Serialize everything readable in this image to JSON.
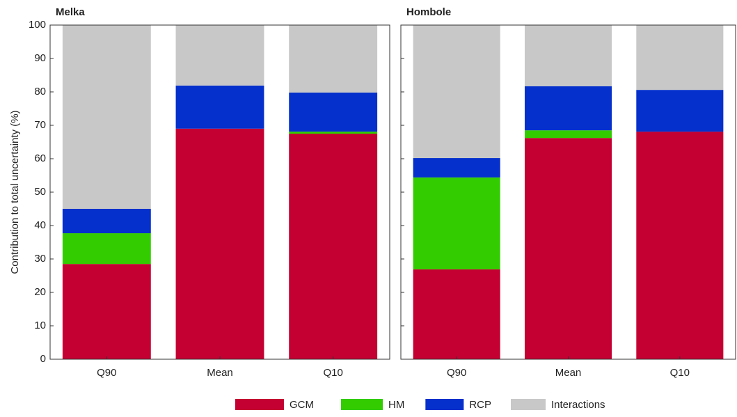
{
  "chart_data": [
    {
      "type": "stacked-bar",
      "title": "Melka",
      "y_label": "Contribution to total uncertainty (%)",
      "categories": [
        "Q90",
        "Mean",
        "Q10"
      ],
      "series": [
        {
          "name": "GCM",
          "color": "#c40032",
          "values": [
            28.5,
            69,
            67.5
          ]
        },
        {
          "name": "HM",
          "color": "#33cc00",
          "values": [
            9.2,
            0,
            0.6
          ]
        },
        {
          "name": "RCP",
          "color": "#0530cc",
          "values": [
            7.3,
            12.9,
            11.7
          ]
        },
        {
          "name": "Interactions",
          "color": "#c8c8c8",
          "values": [
            55,
            18.1,
            20.2
          ]
        }
      ],
      "ylim": [
        0,
        100
      ],
      "yticks": [
        0,
        10,
        20,
        30,
        40,
        50,
        60,
        70,
        80,
        90,
        100
      ]
    },
    {
      "type": "stacked-bar",
      "title": "Hombole",
      "categories": [
        "Q90",
        "Mean",
        "Q10"
      ],
      "series": [
        {
          "name": "GCM",
          "color": "#c40032",
          "values": [
            26.9,
            66.2,
            68.1
          ]
        },
        {
          "name": "HM",
          "color": "#33cc00",
          "values": [
            27.5,
            2.3,
            0
          ]
        },
        {
          "name": "RCP",
          "color": "#0530cc",
          "values": [
            5.8,
            13.2,
            12.5
          ]
        },
        {
          "name": "Interactions",
          "color": "#c8c8c8",
          "values": [
            39.8,
            18.3,
            19.4
          ]
        }
      ],
      "ylim": [
        0,
        100
      ],
      "yticks": [
        0,
        10,
        20,
        30,
        40,
        50,
        60,
        70,
        80,
        90,
        100
      ]
    }
  ]
}
